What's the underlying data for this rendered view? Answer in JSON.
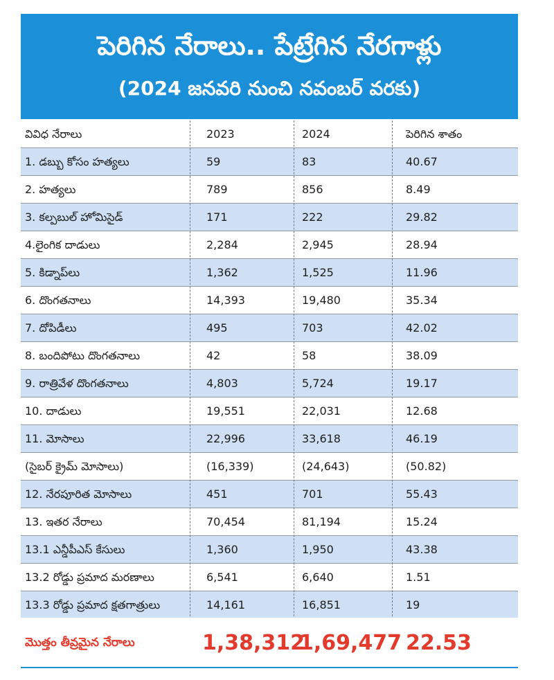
{
  "header": {
    "title": "పెరిగిన నేరాలు.. పేట్రేగిన నేరగాళ్లు",
    "subtitle": "(2024 జనవరి నుంచి నవంబర్ వరకు)"
  },
  "colors": {
    "header_bg": "#1b8fd8",
    "row_alt_bg": "#cfe0f4",
    "total_text": "#e23a2d"
  },
  "chart_data": {
    "type": "table",
    "title": "పెరిగిన నేరాలు.. పేట్రేగిన నేరగాళ్లు",
    "subtitle": "(2024 జనవరి నుంచి నవంబర్ వరకు)",
    "columns": [
      "వివిధ నేరాలు",
      "2023",
      "2024",
      "పెరిగిన శాతం"
    ],
    "rows": [
      [
        "1. డబ్బు కోసం హత్యలు",
        "59",
        "83",
        "40.67"
      ],
      [
        "2. హత్యలు",
        "789",
        "856",
        "8.49"
      ],
      [
        "3. కల్పబుల్ హోమిసైడ్",
        "171",
        "222",
        "29.82"
      ],
      [
        "4.లైంగిక దాడులు",
        "2,284",
        "2,945",
        "28.94"
      ],
      [
        "5. కిడ్నాప్‌లు",
        "1,362",
        "1,525",
        "11.96"
      ],
      [
        "6. దొంగతనాలు",
        "14,393",
        "19,480",
        "35.34"
      ],
      [
        "7. దోపిడీలు",
        "495",
        "703",
        "42.02"
      ],
      [
        "8. బందిపోటు దొంగతనాలు",
        "42",
        "58",
        "38.09"
      ],
      [
        "9. రాత్రివేళ దొంగతనాలు",
        "4,803",
        "5,724",
        "19.17"
      ],
      [
        "10. దాడులు",
        "19,551",
        "22,031",
        "12.68"
      ],
      [
        "11. మోసాలు",
        "22,996",
        "33,618",
        "46.19"
      ],
      [
        "(సైబర్ క్రైమ్ మోసాలు)",
        "(16,339)",
        "(24,643)",
        "(50.82)"
      ],
      [
        "12. నేరపూరిత మోసాలు",
        "451",
        "701",
        "55.43"
      ],
      [
        "13. ఇతర నేరాలు",
        "70,454",
        "81,194",
        "15.24"
      ],
      [
        "13.1 ఎన్డీపీఎస్ కేసులు",
        "1,360",
        "1,950",
        "43.38"
      ],
      [
        "13.2 రోడ్డు ప్రమాద మరణాలు",
        "6,541",
        "6,640",
        "1.51"
      ],
      [
        "13.3 రోడ్డు ప్రమాద క్షతగాత్రులు",
        "14,161",
        "16,851",
        "19"
      ]
    ],
    "total": [
      "మొత్తం తీవ్రమైన నేరాలు",
      "1,38,312",
      "1,69,477",
      "22.53"
    ]
  }
}
